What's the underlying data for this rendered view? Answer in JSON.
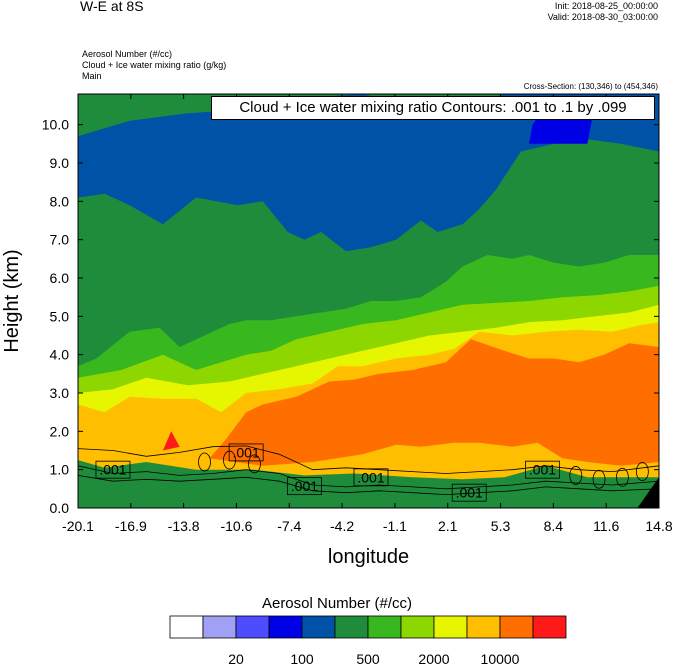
{
  "header": {
    "title": "W-E at 8S",
    "init": "Init: 2018-08-25_00:00:00",
    "valid": "Valid: 2018-08-30_03:00:00",
    "fields": [
      "Aerosol Number   (#/cc)",
      "Cloud + Ice water mixing ratio   (g/kg)",
      "Main"
    ],
    "cross_section": "Cross-Section: (130,346) to (454,346)"
  },
  "chart_data": {
    "type": "heatmap",
    "title": "W-E at 8S",
    "xlabel": "longitude",
    "ylabel": "Height (km)",
    "x_ticks": [
      "-20.1",
      "-16.9",
      "-13.8",
      "-10.6",
      "-7.4",
      "-4.2",
      "-1.1",
      "2.1",
      "5.3",
      "8.4",
      "11.6",
      "14.8"
    ],
    "y_ticks": [
      "0.0",
      "1.0",
      "2.0",
      "3.0",
      "4.0",
      "5.0",
      "6.0",
      "7.0",
      "8.0",
      "9.0",
      "10.0"
    ],
    "xlim": [
      -20.1,
      14.8
    ],
    "ylim": [
      0,
      10.8
    ],
    "filled_field": "Aerosol Number (#/cc)",
    "contour_field": "Cloud + Ice water mixing ratio (g/kg)",
    "contour_banner": "Cloud + Ice water mixing ratio Contours: .001 to .1 by .099",
    "contour_labels": [
      {
        "text": ".001",
        "x": -18.0,
        "y": 1.0
      },
      {
        "text": ".001",
        "x": -10.0,
        "y": 1.45
      },
      {
        "text": ".001",
        "x": -6.5,
        "y": 0.57
      },
      {
        "text": ".001",
        "x": -2.5,
        "y": 0.8
      },
      {
        "text": ".001",
        "x": 3.4,
        "y": 0.4
      },
      {
        "text": ".001",
        "x": 7.8,
        "y": 1.0
      }
    ],
    "regions": [
      {
        "band": 4,
        "points": [
          [
            -20.1,
            9.7
          ],
          [
            -17.0,
            10.1
          ],
          [
            -13.5,
            10.3
          ],
          [
            -10.0,
            10.4
          ],
          [
            -6.5,
            10.7
          ],
          [
            -3.0,
            10.8
          ],
          [
            0.5,
            10.45
          ],
          [
            2.0,
            10.3
          ],
          [
            5.5,
            10.8
          ],
          [
            14.8,
            10.8
          ],
          [
            14.8,
            9.3
          ],
          [
            12.5,
            9.5
          ],
          [
            10.0,
            9.65
          ],
          [
            8.5,
            9.5
          ],
          [
            6.5,
            9.3
          ],
          [
            5.0,
            8.3
          ],
          [
            4.0,
            7.8
          ],
          [
            3.0,
            7.4
          ],
          [
            1.5,
            7.2
          ],
          [
            0.5,
            7.5
          ],
          [
            -1.0,
            7.0
          ],
          [
            -2.5,
            6.8
          ],
          [
            -4.0,
            6.7
          ],
          [
            -5.5,
            7.2
          ],
          [
            -6.5,
            7.0
          ],
          [
            -7.5,
            7.2
          ],
          [
            -9.0,
            8.0
          ],
          [
            -10.5,
            7.9
          ],
          [
            -13.0,
            8.1
          ],
          [
            -15.0,
            7.4
          ],
          [
            -17.0,
            7.9
          ],
          [
            -18.5,
            8.2
          ],
          [
            -20.1,
            8.1
          ]
        ]
      },
      {
        "band": 3,
        "points": [
          [
            7.0,
            9.5
          ],
          [
            10.5,
            9.5
          ],
          [
            10.8,
            10.2
          ],
          [
            9.5,
            10.5
          ],
          [
            8.0,
            10.5
          ],
          [
            7.2,
            10.0
          ]
        ]
      },
      {
        "band": 6,
        "points": [
          [
            -20.1,
            1.9
          ],
          [
            -20.1,
            3.7
          ],
          [
            -19.0,
            3.9
          ],
          [
            -17.0,
            4.6
          ],
          [
            -15.2,
            4.7
          ],
          [
            -14.0,
            4.2
          ],
          [
            -12.5,
            4.5
          ],
          [
            -11.0,
            4.8
          ],
          [
            -10.0,
            4.9
          ],
          [
            -8.5,
            4.9
          ],
          [
            -7.0,
            5.0
          ],
          [
            -5.5,
            5.1
          ],
          [
            -4.0,
            5.2
          ],
          [
            -2.5,
            5.4
          ],
          [
            -1.0,
            5.4
          ],
          [
            0.5,
            5.5
          ],
          [
            2.0,
            5.9
          ],
          [
            3.0,
            6.3
          ],
          [
            4.5,
            6.6
          ],
          [
            6.0,
            6.5
          ],
          [
            7.0,
            6.6
          ],
          [
            8.5,
            6.4
          ],
          [
            10.0,
            6.3
          ],
          [
            11.5,
            6.4
          ],
          [
            13.0,
            6.6
          ],
          [
            14.8,
            6.6
          ],
          [
            14.8,
            1.9
          ]
        ]
      },
      {
        "band": 7,
        "points": [
          [
            -20.1,
            1.6
          ],
          [
            -20.1,
            3.4
          ],
          [
            -17.5,
            3.6
          ],
          [
            -15.0,
            4.0
          ],
          [
            -13.0,
            3.6
          ],
          [
            -11.5,
            3.8
          ],
          [
            -10.0,
            4.0
          ],
          [
            -8.5,
            4.1
          ],
          [
            -7.0,
            4.4
          ],
          [
            -5.0,
            4.6
          ],
          [
            -3.0,
            4.8
          ],
          [
            -1.0,
            4.9
          ],
          [
            1.0,
            5.1
          ],
          [
            3.0,
            5.3
          ],
          [
            5.0,
            5.35
          ],
          [
            7.0,
            5.4
          ],
          [
            9.0,
            5.5
          ],
          [
            11.0,
            5.55
          ],
          [
            13.0,
            5.65
          ],
          [
            14.8,
            5.8
          ],
          [
            14.8,
            1.6
          ]
        ]
      },
      {
        "band": 8,
        "points": [
          [
            -20.1,
            1.3
          ],
          [
            -20.1,
            3.0
          ],
          [
            -18.0,
            3.1
          ],
          [
            -16.0,
            3.4
          ],
          [
            -13.5,
            3.2
          ],
          [
            -11.0,
            3.3
          ],
          [
            -9.0,
            3.5
          ],
          [
            -7.0,
            3.7
          ],
          [
            -5.0,
            3.9
          ],
          [
            -3.0,
            4.1
          ],
          [
            -1.0,
            4.3
          ],
          [
            1.0,
            4.5
          ],
          [
            3.0,
            4.6
          ],
          [
            5.0,
            4.7
          ],
          [
            7.0,
            4.85
          ],
          [
            9.0,
            4.9
          ],
          [
            11.0,
            5.0
          ],
          [
            13.0,
            5.1
          ],
          [
            14.8,
            5.3
          ],
          [
            14.8,
            1.3
          ]
        ]
      },
      {
        "band": 9,
        "points": [
          [
            -20.1,
            1.25
          ],
          [
            -20.1,
            2.7
          ],
          [
            -18.5,
            2.5
          ],
          [
            -17.0,
            2.9
          ],
          [
            -15.0,
            2.85
          ],
          [
            -13.0,
            2.85
          ],
          [
            -11.5,
            2.5
          ],
          [
            -10.0,
            3.0
          ],
          [
            -8.0,
            3.1
          ],
          [
            -6.0,
            3.25
          ],
          [
            -4.5,
            3.7
          ],
          [
            -3.0,
            3.7
          ],
          [
            -1.0,
            3.9
          ],
          [
            1.0,
            4.0
          ],
          [
            2.5,
            4.15
          ],
          [
            4.0,
            4.6
          ],
          [
            6.0,
            4.5
          ],
          [
            8.0,
            4.6
          ],
          [
            10.0,
            4.65
          ],
          [
            12.0,
            4.6
          ],
          [
            13.5,
            4.75
          ],
          [
            14.8,
            4.85
          ],
          [
            14.8,
            0.8
          ],
          [
            10.5,
            0.8
          ],
          [
            8.0,
            1.1
          ],
          [
            5.5,
            0.8
          ],
          [
            3.0,
            0.75
          ],
          [
            0.0,
            0.8
          ],
          [
            -3.5,
            0.9
          ],
          [
            -6.5,
            0.85
          ],
          [
            -9.5,
            1.0
          ],
          [
            -13.0,
            1.0
          ],
          [
            -16.0,
            1.2
          ],
          [
            -18.5,
            1.05
          ]
        ]
      },
      {
        "band": 10,
        "points": [
          [
            -12.2,
            1.3
          ],
          [
            -11.2,
            1.8
          ],
          [
            -10.0,
            2.5
          ],
          [
            -9.0,
            2.7
          ],
          [
            -7.0,
            2.9
          ],
          [
            -5.0,
            3.3
          ],
          [
            -3.5,
            3.35
          ],
          [
            -2.0,
            3.5
          ],
          [
            0.0,
            3.6
          ],
          [
            2.0,
            3.8
          ],
          [
            3.5,
            4.4
          ],
          [
            5.5,
            4.1
          ],
          [
            7.0,
            3.9
          ],
          [
            8.5,
            3.9
          ],
          [
            10.0,
            3.8
          ],
          [
            11.5,
            4.0
          ],
          [
            13.0,
            4.3
          ],
          [
            14.8,
            4.2
          ],
          [
            14.8,
            1.2
          ],
          [
            12.5,
            1.1
          ],
          [
            10.5,
            1.2
          ],
          [
            9.0,
            1.3
          ],
          [
            7.5,
            1.7
          ],
          [
            6.0,
            1.6
          ],
          [
            4.0,
            1.7
          ],
          [
            2.5,
            1.7
          ],
          [
            0.5,
            1.6
          ],
          [
            -1.0,
            1.65
          ],
          [
            -3.0,
            1.4
          ],
          [
            -6.0,
            1.2
          ],
          [
            -9.0,
            1.1
          ]
        ]
      },
      {
        "band": 11,
        "points": [
          [
            -15.0,
            1.5
          ],
          [
            -14.5,
            2.0
          ],
          [
            -14.0,
            1.6
          ]
        ]
      },
      {
        "band": 12,
        "points": [
          [
            13.5,
            0.0
          ],
          [
            14.8,
            0.0
          ],
          [
            14.8,
            0.8
          ]
        ]
      }
    ]
  },
  "colorbar": {
    "title": "Aerosol Number  (#/cc)",
    "colors": [
      "#ffffff",
      "#a0a0f5",
      "#4d4dff",
      "#0000e6",
      "#0052a6",
      "#1f8c3c",
      "#38b71e",
      "#8ed600",
      "#e6f500",
      "#ffbf00",
      "#ff6f00",
      "#ff1a1a"
    ],
    "labels": [
      {
        "after_box": 2,
        "text": "20"
      },
      {
        "after_box": 4,
        "text": "100"
      },
      {
        "after_box": 6,
        "text": "500"
      },
      {
        "after_box": 8,
        "text": "2000"
      },
      {
        "after_box": 10,
        "text": "10000"
      }
    ]
  }
}
